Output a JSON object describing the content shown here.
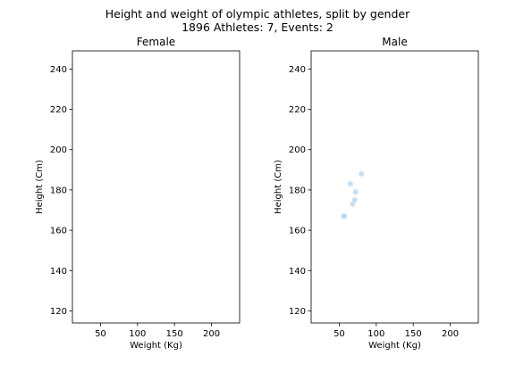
{
  "figure": {
    "title_line1": "Height and weight of olympic athletes, split by gender",
    "title_line2": "1896 Athletes: 7, Events: 2"
  },
  "chart_data": [
    {
      "type": "scatter",
      "title": "Female",
      "xlabel": "Weight (Kg)",
      "ylabel": "Height (Cm)",
      "xlim": [
        12,
        238
      ],
      "ylim": [
        114,
        249
      ],
      "xticks": [
        50,
        100,
        150,
        200
      ],
      "yticks": [
        120,
        140,
        160,
        180,
        200,
        220,
        240
      ],
      "grid": false,
      "color": "#bcd6ec",
      "points": []
    },
    {
      "type": "scatter",
      "title": "Male",
      "xlabel": "Weight (Kg)",
      "ylabel": "Height (Cm)",
      "xlim": [
        12,
        238
      ],
      "ylim": [
        114,
        249
      ],
      "xticks": [
        50,
        100,
        150,
        200
      ],
      "yticks": [
        120,
        140,
        160,
        180,
        200,
        220,
        240
      ],
      "grid": false,
      "color": "#bcd6ec",
      "points": [
        {
          "x": 80,
          "y": 188
        },
        {
          "x": 65,
          "y": 183
        },
        {
          "x": 72,
          "y": 179
        },
        {
          "x": 71,
          "y": 175
        },
        {
          "x": 68,
          "y": 173
        },
        {
          "x": 56,
          "y": 167
        },
        {
          "x": 57,
          "y": 167
        }
      ]
    }
  ]
}
